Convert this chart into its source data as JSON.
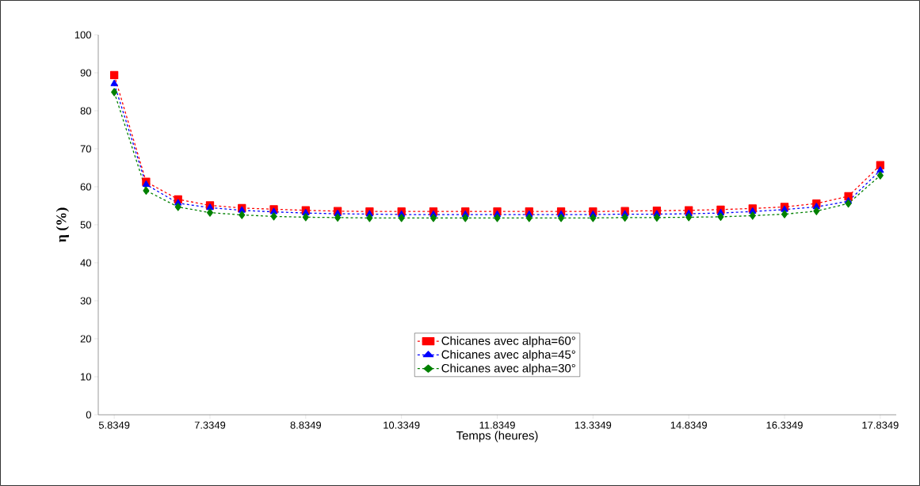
{
  "chart_data": {
    "type": "line",
    "xlabel": "Temps (heures)",
    "ylabel": "η (%)",
    "x": [
      5.8349,
      6.3349,
      6.8349,
      7.3349,
      7.8349,
      8.3349,
      8.8349,
      9.3349,
      9.8349,
      10.3349,
      10.8349,
      11.3349,
      11.8349,
      12.3349,
      12.8349,
      13.3349,
      13.8349,
      14.3349,
      14.8349,
      15.3349,
      15.8349,
      16.3349,
      16.8349,
      17.3349,
      17.8349
    ],
    "xlim": [
      5.5849,
      18.0849
    ],
    "xticks": [
      5.8349,
      7.3349,
      8.8349,
      10.3349,
      11.8349,
      13.3349,
      14.8349,
      16.3349,
      17.8349
    ],
    "ylim": [
      0,
      100
    ],
    "yticks": [
      0,
      10,
      20,
      30,
      40,
      50,
      60,
      70,
      80,
      90,
      100
    ],
    "grid": false,
    "legend": "bottom",
    "line_style": "dashed",
    "series": [
      {
        "name": "Chicanes avec alpha=60°",
        "color": "#ff0000",
        "marker": "square",
        "values": [
          89.4,
          61.3,
          56.7,
          55.1,
          54.4,
          54.1,
          53.8,
          53.6,
          53.5,
          53.5,
          53.5,
          53.5,
          53.5,
          53.5,
          53.5,
          53.5,
          53.6,
          53.7,
          53.8,
          54.0,
          54.3,
          54.7,
          55.6,
          57.5,
          65.7
        ]
      },
      {
        "name": "Chicanes avec alpha=45°",
        "color": "#0000ff",
        "marker": "triangle",
        "values": [
          87.1,
          60.6,
          55.7,
          54.5,
          53.8,
          53.4,
          53.1,
          52.9,
          52.8,
          52.7,
          52.7,
          52.7,
          52.7,
          52.7,
          52.7,
          52.7,
          52.8,
          52.8,
          52.9,
          53.1,
          53.5,
          54.0,
          54.7,
          56.2,
          64.3
        ]
      },
      {
        "name": "Chicanes avec alpha=30°",
        "color": "#008000",
        "marker": "diamond",
        "values": [
          84.9,
          59.0,
          54.7,
          53.2,
          52.6,
          52.2,
          52.0,
          51.9,
          51.8,
          51.8,
          51.8,
          51.8,
          51.8,
          51.8,
          51.8,
          51.8,
          51.9,
          51.9,
          52.0,
          52.1,
          52.4,
          52.8,
          53.6,
          55.6,
          63.0
        ]
      }
    ]
  }
}
